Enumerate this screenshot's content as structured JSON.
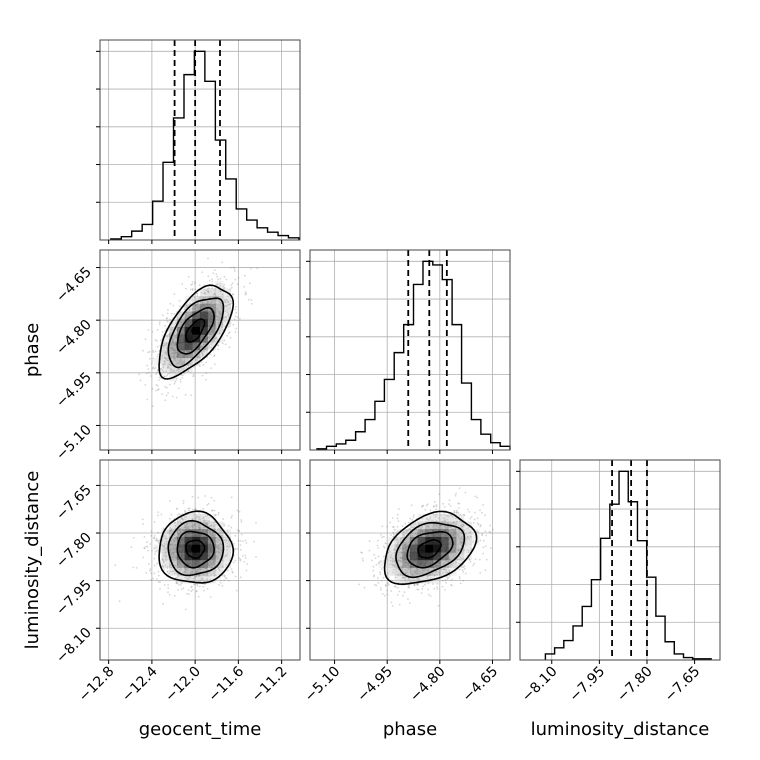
{
  "chart_data": {
    "type": "corner",
    "title": "",
    "grid": true,
    "parameters": [
      "geocent_time",
      "phase",
      "luminosity_distance"
    ],
    "axis_labels": {
      "x": [
        "geocent_time",
        "phase",
        "luminosity_distance"
      ],
      "y": [
        "",
        "phase",
        "luminosity_distance"
      ]
    },
    "ranges": {
      "geocent_time": [
        -12.88,
        -11.03
      ],
      "phase": [
        -5.17,
        -4.6
      ],
      "luminosity_distance": [
        -8.2,
        -7.57
      ]
    },
    "ticks": {
      "geocent_time": [
        "−12.8",
        "−12.4",
        "−12.0",
        "−11.6",
        "−11.2"
      ],
      "phase": [
        "−5.10",
        "−4.95",
        "−4.80",
        "−4.65"
      ],
      "luminosity_distance": [
        "−8.10",
        "−7.95",
        "−7.80",
        "−7.65"
      ]
    },
    "tick_values": {
      "geocent_time": [
        -12.8,
        -12.4,
        -12.0,
        -11.6,
        -11.2
      ],
      "phase": [
        -5.1,
        -4.95,
        -4.8,
        -4.65
      ],
      "luminosity_distance": [
        -8.1,
        -7.95,
        -7.8,
        -7.65
      ]
    },
    "quantiles": {
      "geocent_time": [
        -12.19,
        -12.0,
        -11.77
      ],
      "phase": [
        -4.89,
        -4.83,
        -4.78
      ],
      "luminosity_distance": [
        -7.91,
        -7.85,
        -7.8
      ]
    },
    "histograms": {
      "geocent_time": {
        "bin_edges": [
          -12.78,
          -12.683,
          -12.587,
          -12.49,
          -12.393,
          -12.297,
          -12.2,
          -12.103,
          -12.007,
          -11.91,
          -11.813,
          -11.717,
          -11.62,
          -11.523,
          -11.427,
          -11.33,
          -11.233,
          -11.137,
          -11.04
        ],
        "counts": [
          1,
          3,
          8,
          14,
          35,
          70,
          110,
          149,
          170,
          143,
          90,
          55,
          28,
          18,
          11,
          7,
          4,
          2
        ]
      },
      "phase": {
        "bin_edges": [
          -5.15,
          -5.123,
          -5.095,
          -5.068,
          -5.04,
          -5.013,
          -4.985,
          -4.958,
          -4.93,
          -4.903,
          -4.875,
          -4.848,
          -4.82,
          -4.793,
          -4.765,
          -4.738,
          -4.71,
          -4.683,
          -4.655,
          -4.628,
          -4.6
        ],
        "counts": [
          1,
          3,
          5,
          8,
          15,
          25,
          40,
          58,
          80,
          103,
          136,
          155,
          152,
          140,
          103,
          55,
          25,
          13,
          6,
          3
        ]
      },
      "luminosity_distance": {
        "bin_edges": [
          -8.12,
          -8.091,
          -8.062,
          -8.033,
          -8.004,
          -7.975,
          -7.946,
          -7.917,
          -7.888,
          -7.859,
          -7.83,
          -7.801,
          -7.772,
          -7.743,
          -7.714,
          -7.685,
          -7.656,
          -7.627,
          -7.598
        ],
        "counts": [
          5,
          10,
          16,
          28,
          44,
          66,
          100,
          128,
          155,
          130,
          98,
          68,
          36,
          15,
          5,
          2,
          1,
          1
        ]
      }
    },
    "joint": {
      "phase_vs_geocent_time": {
        "center": [
          -12.0,
          -4.83
        ],
        "sigma": [
          0.17,
          0.065
        ],
        "correlation": 0.62,
        "contour_levels_sigma": [
          0.5,
          1.0,
          1.5,
          2.0
        ]
      },
      "luminosity_distance_vs_geocent_time": {
        "center": [
          -12.0,
          -7.85
        ],
        "sigma": [
          0.17,
          0.056
        ],
        "correlation": 0.0,
        "contour_levels_sigma": [
          0.5,
          1.0,
          1.5,
          2.0
        ]
      },
      "luminosity_distance_vs_phase": {
        "center": [
          -4.83,
          -7.85
        ],
        "sigma": [
          0.065,
          0.056
        ],
        "correlation": 0.35,
        "contour_levels_sigma": [
          0.5,
          1.0,
          1.5,
          2.0
        ]
      }
    },
    "colors": {
      "line": "#000000",
      "grid": "#b0b0b0",
      "frame": "#444444",
      "scatter": "#8a8a8a"
    }
  }
}
